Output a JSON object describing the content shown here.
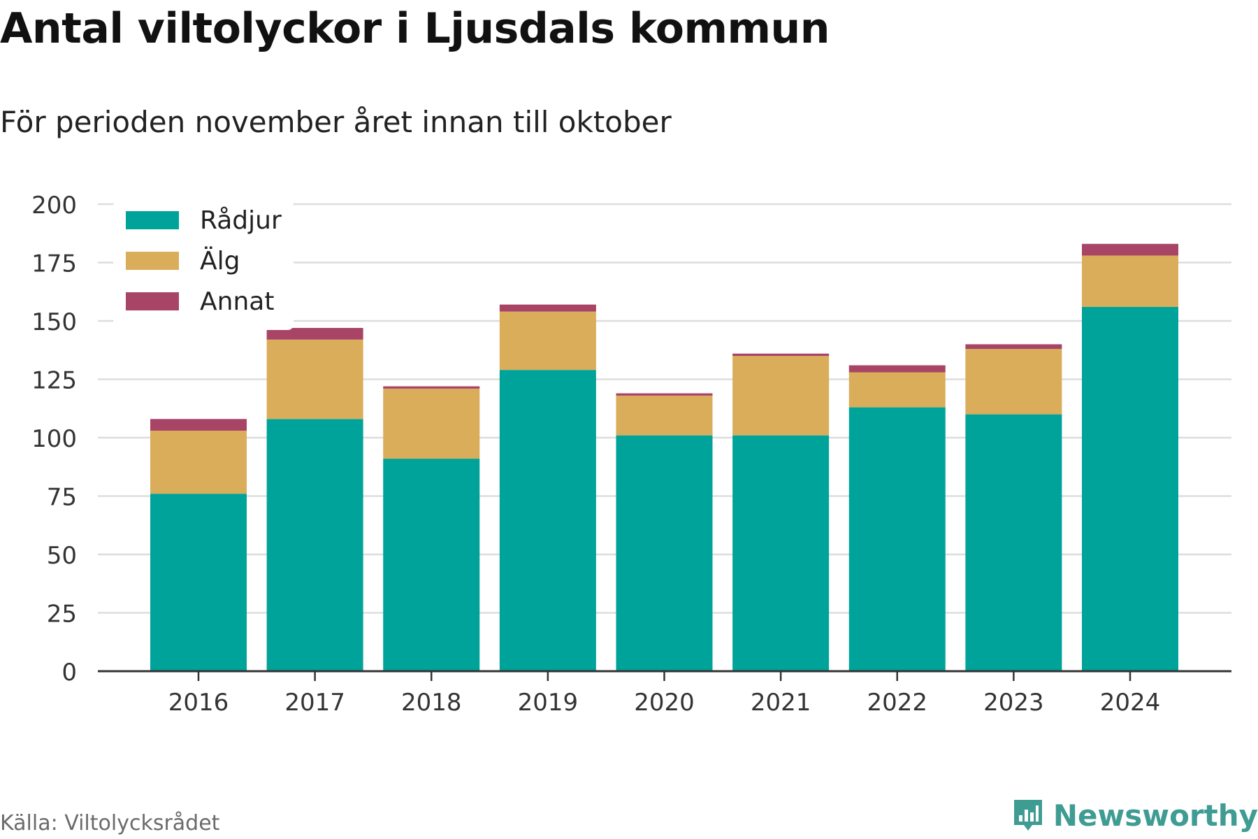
{
  "title": "Antal viltolyckor i Ljusdals kommun",
  "subtitle": "För perioden november året innan till oktober",
  "source": "Källa: Viltolycksrådet",
  "brand": "Newsworthy",
  "colors": {
    "radjur": "#00a39a",
    "alg": "#d9ad5a",
    "annat": "#a84466",
    "grid": "#dddddd",
    "axis": "#333333",
    "brand": "#3f9c93"
  },
  "chart_data": {
    "type": "bar",
    "stacked": true,
    "categories": [
      "2016",
      "2017",
      "2018",
      "2019",
      "2020",
      "2021",
      "2022",
      "2023",
      "2024"
    ],
    "series": [
      {
        "name": "Rådjur",
        "color": "#00a39a",
        "values": [
          76,
          108,
          91,
          129,
          101,
          101,
          113,
          110,
          156
        ]
      },
      {
        "name": "Älg",
        "color": "#d9ad5a",
        "values": [
          27,
          34,
          30,
          25,
          17,
          34,
          15,
          28,
          22
        ]
      },
      {
        "name": "Annat",
        "color": "#a84466",
        "values": [
          5,
          5,
          1,
          3,
          1,
          1,
          3,
          2,
          5
        ]
      }
    ],
    "ylim": [
      0,
      200
    ],
    "yticks": [
      0,
      25,
      50,
      75,
      100,
      125,
      150,
      175,
      200
    ],
    "grid": true,
    "legend": "top-left"
  }
}
